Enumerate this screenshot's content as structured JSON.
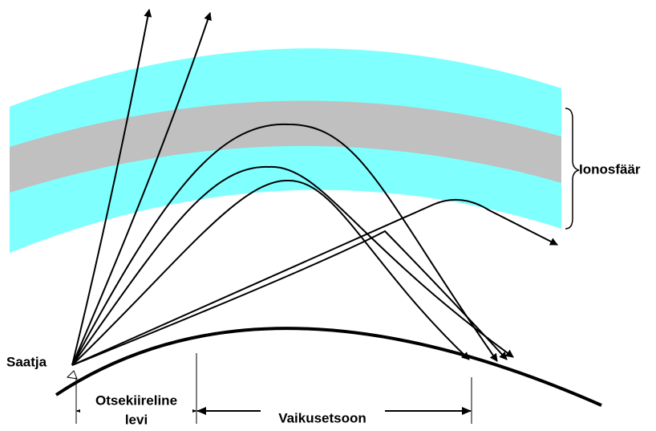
{
  "labels": {
    "ionosphere": "Ionosfäär",
    "transmitter": "Saatja",
    "direct_line1": "Otsekiireline",
    "direct_line2": "levi",
    "skip_zone": "Vaikusetsoon"
  }
}
